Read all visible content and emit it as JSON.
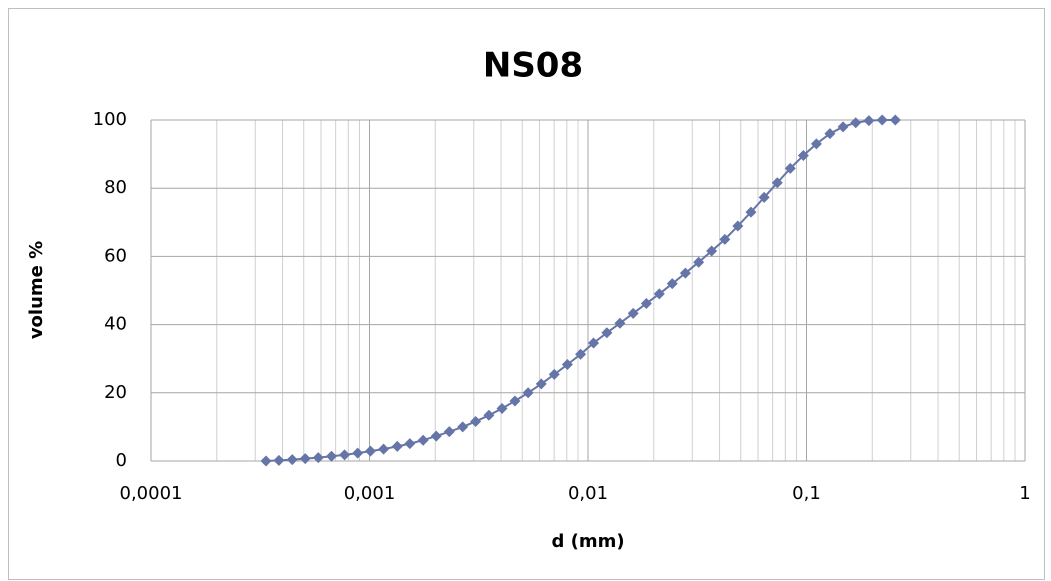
{
  "chart_data": {
    "type": "line",
    "title": "NS08",
    "x_label": "d (mm)",
    "y_label": "volume %",
    "x_log": true,
    "grid": true,
    "minor_grid": true,
    "xlim": [
      0.0001,
      1
    ],
    "xticks": [
      {
        "value": 0.0001,
        "label": "0,0001"
      },
      {
        "value": 0.001,
        "label": "0,001"
      },
      {
        "value": 0.01,
        "label": "0,01"
      },
      {
        "value": 0.1,
        "label": "0,1"
      },
      1
    ],
    "ylim": [
      0,
      100
    ],
    "yticks": [
      0,
      20,
      40,
      60,
      80,
      100
    ],
    "series": [
      {
        "color": "#6675a8",
        "x": [
          0.000336,
          0.000385,
          0.000443,
          0.000508,
          0.000583,
          0.00067,
          0.000769,
          0.000883,
          0.00101,
          0.00116,
          0.00134,
          0.00153,
          0.00176,
          0.00202,
          0.00232,
          0.00267,
          0.00306,
          0.00352,
          0.00404,
          0.00463,
          0.00532,
          0.00611,
          0.00701,
          0.00805,
          0.00925,
          0.0106,
          0.0122,
          0.014,
          0.0161,
          0.0185,
          0.0212,
          0.0243,
          0.0279,
          0.0321,
          0.0368,
          0.0423,
          0.0485,
          0.0557,
          0.064,
          0.0735,
          0.0843,
          0.0968,
          0.111,
          0.128,
          0.147,
          0.168,
          0.193,
          0.222,
          0.255
        ],
        "values": [
          0,
          0.2,
          0.4,
          0.7,
          1.0,
          1.4,
          1.8,
          2.3,
          2.9,
          3.5,
          4.3,
          5.1,
          6.1,
          7.3,
          8.6,
          10.0,
          11.6,
          13.4,
          15.4,
          17.6,
          20.0,
          22.6,
          25.4,
          28.3,
          31.3,
          34.6,
          37.6,
          40.4,
          43.3,
          46.2,
          49.0,
          52.0,
          55.1,
          58.3,
          61.6,
          65.0,
          68.9,
          73.0,
          77.3,
          81.6,
          85.8,
          89.6,
          93.0,
          96.0,
          98.0,
          99.2,
          99.8,
          100,
          100
        ]
      }
    ]
  }
}
